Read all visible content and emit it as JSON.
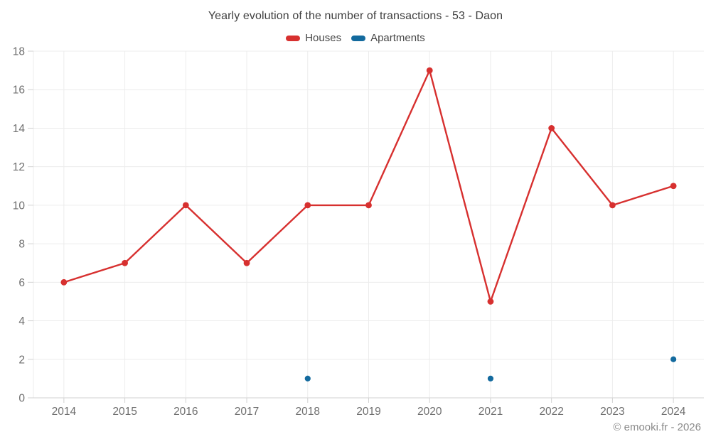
{
  "header": {
    "title": "Yearly evolution of the number of transactions - 53 - Daon"
  },
  "legend": {
    "items": [
      {
        "label": "Houses",
        "color": "#d7302f"
      },
      {
        "label": "Apartments",
        "color": "#136a9e"
      }
    ]
  },
  "chart_data": {
    "type": "line",
    "title": "Yearly evolution of the number of transactions - 53 - Daon",
    "categories": [
      "2014",
      "2015",
      "2016",
      "2017",
      "2018",
      "2019",
      "2020",
      "2021",
      "2022",
      "2023",
      "2024"
    ],
    "series": [
      {
        "name": "Houses",
        "color": "#d7302f",
        "line": true,
        "values": [
          6,
          7,
          10,
          7,
          10,
          10,
          17,
          5,
          14,
          10,
          11
        ]
      },
      {
        "name": "Apartments",
        "color": "#136a9e",
        "line": false,
        "values": [
          null,
          null,
          null,
          null,
          1,
          null,
          null,
          1,
          null,
          null,
          2
        ]
      }
    ],
    "ylim": [
      0,
      18
    ],
    "ytick_step": 2,
    "grid": true,
    "legend_position": "top",
    "xlabel": "",
    "ylabel": ""
  },
  "footer": {
    "credit": "© emooki.fr - 2026"
  }
}
